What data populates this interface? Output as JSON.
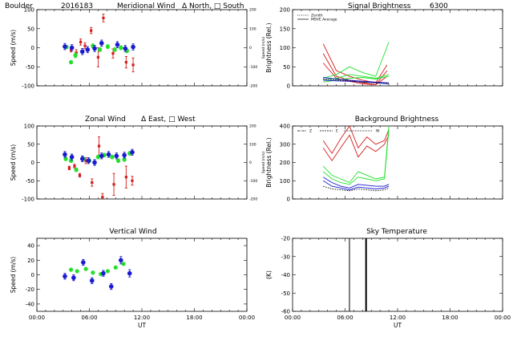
{
  "header": {
    "site": "Boulder",
    "date": "2016183"
  },
  "colors": {
    "red": "#d41c1c",
    "green": "#22e02a",
    "blue": "#1a1ad0",
    "black": "#000000"
  },
  "chart_data": [
    {
      "id": "meridional",
      "type": "scatter",
      "title": "Meridional Wind",
      "legend_text": "Δ North, □ South",
      "ylabel": "Speed (m/s)",
      "right_ylabel": "Speed (m/s)",
      "xlim": [
        0,
        24
      ],
      "ylim": [
        -100,
        100
      ],
      "yticks": [
        -100,
        -50,
        0,
        50,
        100
      ],
      "right_ylim": [
        -200,
        200
      ],
      "right_yticks": [
        -200,
        -100,
        0,
        100,
        200
      ],
      "xticklabels": [],
      "series": [
        {
          "color": "red",
          "x": [
            3.9,
            4.5,
            5.0,
            5.5,
            6.2,
            7.0,
            7.6,
            8.7,
            10.2,
            11.0
          ],
          "y": [
            -5,
            -13,
            15,
            5,
            45,
            -25,
            78,
            -15,
            -38,
            -45
          ],
          "err": [
            6,
            8,
            8,
            8,
            8,
            25,
            10,
            12,
            15,
            18
          ]
        },
        {
          "color": "green",
          "x": [
            3.4,
            3.9,
            4.4,
            6.4,
            7.2,
            8.1,
            8.9,
            9.6,
            10.3
          ],
          "y": [
            2,
            -38,
            -20,
            5,
            -5,
            3,
            -5,
            0,
            -8
          ],
          "err": [
            4,
            4,
            6,
            5,
            5,
            5,
            5,
            5,
            5
          ]
        },
        {
          "color": "blue",
          "x": [
            3.2,
            4.0,
            5.2,
            5.8,
            6.6,
            7.4,
            9.2,
            10.1,
            11.0
          ],
          "y": [
            3,
            0,
            -10,
            -5,
            -2,
            12,
            8,
            -2,
            2
          ],
          "err": [
            8,
            8,
            8,
            8,
            8,
            8,
            8,
            8,
            8
          ]
        }
      ]
    },
    {
      "id": "signal",
      "type": "line",
      "title": "Signal Brightness",
      "wavelength": "6300",
      "ylabel": "Brightness (Rel.)",
      "xlim": [
        0,
        24
      ],
      "ylim": [
        0,
        200
      ],
      "yticks": [
        0,
        50,
        100,
        150,
        200
      ],
      "xticklabels": [],
      "legend": [
        {
          "label": "Zenith",
          "style": "dotted"
        },
        {
          "label": "MSVE Average",
          "style": "solid"
        }
      ],
      "series": [
        {
          "color": "red",
          "x": [
            3.5,
            5.0,
            6.5,
            8.0,
            9.5,
            10.8
          ],
          "y": [
            110,
            40,
            25,
            15,
            8,
            55
          ]
        },
        {
          "color": "red",
          "x": [
            3.5,
            5.0,
            6.5,
            8.0,
            9.5,
            10.8
          ],
          "y": [
            85,
            25,
            15,
            8,
            3,
            25
          ]
        },
        {
          "color": "red",
          "x": [
            3.5,
            5.0,
            6.5,
            8.0,
            9.5,
            10.8
          ],
          "y": [
            60,
            20,
            12,
            5,
            3,
            40
          ]
        },
        {
          "color": "green",
          "x": [
            3.5,
            5.0,
            6.5,
            8.0,
            9.5,
            11.0
          ],
          "y": [
            20,
            30,
            50,
            35,
            25,
            115
          ]
        },
        {
          "color": "green",
          "x": [
            3.5,
            5.0,
            6.5,
            8.0,
            9.5,
            11.0
          ],
          "y": [
            15,
            20,
            30,
            25,
            20,
            30
          ]
        },
        {
          "color": "green",
          "x": [
            3.5,
            5.0,
            6.5,
            8.0,
            9.5,
            11.0
          ],
          "y": [
            10,
            15,
            20,
            22,
            18,
            25
          ]
        },
        {
          "color": "blue",
          "x": [
            3.5,
            5.0,
            6.5,
            8.0,
            9.5,
            11.0
          ],
          "y": [
            22,
            18,
            15,
            12,
            10,
            8
          ]
        },
        {
          "color": "blue",
          "x": [
            3.5,
            5.0,
            6.5,
            8.0,
            9.5,
            11.0
          ],
          "y": [
            15,
            13,
            12,
            10,
            8,
            5
          ]
        },
        {
          "color": "black",
          "x": [
            3.5,
            5.0,
            6.5,
            8.0,
            9.5,
            11.0
          ],
          "y": [
            18,
            15,
            13,
            10,
            8,
            6
          ]
        }
      ]
    },
    {
      "id": "zonal",
      "type": "scatter",
      "title": "Zonal Wind",
      "legend_text": "Δ East, □ West",
      "ylabel": "Speed (m/s)",
      "right_ylabel": "Speed (m/s)",
      "xlim": [
        0,
        24
      ],
      "ylim": [
        -100,
        100
      ],
      "yticks": [
        -100,
        -50,
        0,
        50,
        100
      ],
      "right_ylim": [
        -200,
        200
      ],
      "right_yticks": [
        -200,
        -100,
        0,
        100,
        200
      ],
      "xticklabels": [],
      "series": [
        {
          "color": "red",
          "x": [
            3.7,
            4.3,
            4.9,
            5.6,
            6.3,
            7.1,
            7.5,
            8.8,
            10.2,
            10.9
          ],
          "y": [
            -15,
            -10,
            -35,
            5,
            -55,
            45,
            -95,
            -60,
            -40,
            -50
          ],
          "err": [
            5,
            5,
            5,
            8,
            10,
            25,
            10,
            30,
            30,
            12
          ]
        },
        {
          "color": "green",
          "x": [
            3.3,
            3.9,
            4.5,
            5.3,
            6.0,
            7.0,
            7.7,
            8.6,
            9.3,
            10.0,
            10.6
          ],
          "y": [
            10,
            5,
            -20,
            10,
            5,
            15,
            20,
            15,
            5,
            8,
            25
          ],
          "err": [
            5,
            5,
            5,
            5,
            5,
            5,
            5,
            5,
            5,
            5,
            5
          ]
        },
        {
          "color": "blue",
          "x": [
            3.2,
            4.0,
            5.2,
            5.9,
            6.6,
            7.4,
            8.2,
            9.1,
            10.0,
            10.9
          ],
          "y": [
            22,
            15,
            10,
            5,
            0,
            18,
            22,
            18,
            20,
            28
          ],
          "err": [
            8,
            8,
            8,
            8,
            8,
            8,
            8,
            8,
            8,
            8
          ]
        }
      ]
    },
    {
      "id": "background",
      "type": "line",
      "title": "Background Brightness",
      "ylabel": "Brightness (Rel.)",
      "xlim": [
        0,
        24
      ],
      "ylim": [
        0,
        400
      ],
      "yticks": [
        0,
        100,
        200,
        300,
        400
      ],
      "xticklabels": [],
      "direction_labels": [
        "Z",
        "E",
        "W"
      ],
      "series": [
        {
          "color": "red",
          "x": [
            3.5,
            4.5,
            5.5,
            6.5,
            7.5,
            8.5,
            9.5,
            10.5,
            11.0
          ],
          "y": [
            320,
            250,
            330,
            400,
            280,
            340,
            300,
            320,
            380
          ]
        },
        {
          "color": "red",
          "x": [
            3.5,
            4.5,
            5.5,
            6.5,
            7.5,
            8.5,
            9.5,
            10.5,
            11.0
          ],
          "y": [
            280,
            210,
            280,
            350,
            230,
            290,
            260,
            300,
            350
          ]
        },
        {
          "color": "green",
          "x": [
            3.5,
            4.5,
            5.5,
            6.5,
            7.5,
            8.5,
            9.5,
            10.5,
            11.0
          ],
          "y": [
            180,
            130,
            110,
            90,
            150,
            130,
            110,
            120,
            400
          ]
        },
        {
          "color": "green",
          "x": [
            3.5,
            4.5,
            5.5,
            6.5,
            7.5,
            8.5,
            9.5,
            10.5,
            11.0
          ],
          "y": [
            150,
            110,
            90,
            80,
            120,
            110,
            100,
            110,
            380
          ]
        },
        {
          "color": "blue",
          "x": [
            3.5,
            4.5,
            5.5,
            6.5,
            7.5,
            8.5,
            9.5,
            10.5,
            11.0
          ],
          "y": [
            120,
            90,
            70,
            60,
            80,
            75,
            70,
            70,
            80
          ]
        },
        {
          "color": "blue",
          "x": [
            3.5,
            4.5,
            5.5,
            6.5,
            7.5,
            8.5,
            9.5,
            10.5,
            11.0
          ],
          "y": [
            100,
            70,
            60,
            50,
            65,
            60,
            55,
            60,
            70
          ]
        },
        {
          "color": "black",
          "x": [
            3.5,
            4.5,
            5.5,
            6.5,
            7.5,
            8.5,
            9.5,
            10.5,
            11.0
          ],
          "y": [
            70,
            55,
            50,
            45,
            55,
            50,
            45,
            50,
            60
          ]
        }
      ]
    },
    {
      "id": "vertical",
      "type": "scatter",
      "title": "Vertical Wind",
      "ylabel": "Speed (m/s)",
      "xlabel": "UT",
      "xlim": [
        0,
        24
      ],
      "ylim": [
        -50,
        50
      ],
      "yticks": [
        -40,
        -20,
        0,
        20,
        40
      ],
      "xticks": [
        0,
        6,
        12,
        18,
        24
      ],
      "xticklabels": [
        "00:00",
        "06:00",
        "12:00",
        "18:00",
        "00:00"
      ],
      "series": [
        {
          "color": "green",
          "x": [
            3.9,
            4.6,
            5.6,
            6.4,
            7.3,
            8.1,
            9.0,
            9.9
          ],
          "y": [
            7,
            5,
            8,
            3,
            1,
            5,
            10,
            15
          ],
          "err": [
            0,
            0,
            0,
            0,
            0,
            0,
            0,
            0
          ]
        },
        {
          "color": "blue",
          "x": [
            3.2,
            4.2,
            5.3,
            6.3,
            7.6,
            8.5,
            9.6,
            10.6
          ],
          "y": [
            -2,
            -4,
            17,
            -8,
            2,
            -16,
            20,
            2
          ],
          "err": [
            4,
            4,
            4,
            4,
            4,
            4,
            5,
            5
          ]
        }
      ]
    },
    {
      "id": "sky",
      "type": "line",
      "title": "Sky Temperature",
      "ylabel": "(K)",
      "xlabel": "UT",
      "xlim": [
        0,
        24
      ],
      "ylim": [
        -60,
        -20
      ],
      "yticks": [
        -60,
        -50,
        -40,
        -30,
        -20
      ],
      "xticks": [
        0,
        6,
        12,
        18,
        24
      ],
      "xticklabels": [
        "00:00",
        "06:00",
        "12:00",
        "18:00",
        "00:00"
      ],
      "vlines": [
        {
          "x": 6.5,
          "width": 1
        },
        {
          "x": 8.4,
          "width": 2
        }
      ]
    }
  ]
}
